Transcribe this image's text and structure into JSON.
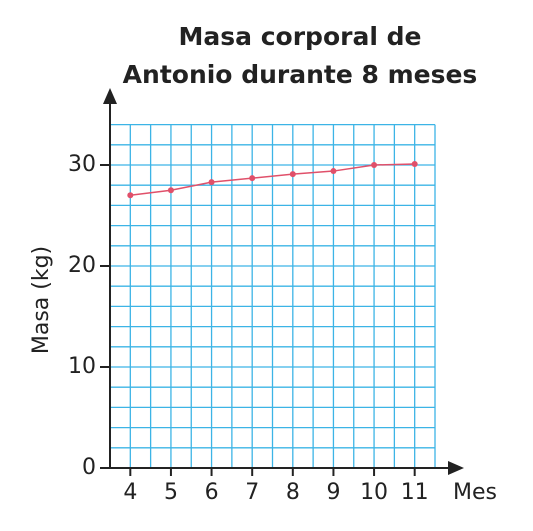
{
  "chart_data": {
    "type": "line",
    "title": [
      "Masa corporal de",
      "Antonio durante 8 meses"
    ],
    "x_label": "Mes",
    "y_label": "Masa (kg)",
    "x": [
      4,
      5,
      6,
      7,
      8,
      9,
      10,
      11
    ],
    "series": [
      {
        "name": "Masa",
        "color": "#e0506a",
        "values": [
          27,
          27.5,
          28.3,
          28.7,
          29.1,
          29.4,
          30,
          30.1
        ]
      }
    ],
    "xlim": [
      3.5,
      11.5
    ],
    "ylim": [
      0,
      34
    ],
    "xticks": [
      4,
      5,
      6,
      7,
      8,
      9,
      10,
      11
    ],
    "yticks": [
      0,
      10,
      20,
      30
    ],
    "grid": true,
    "grid_color": "#3cb4e6",
    "xgrid": [
      3.5,
      4,
      4.5,
      5,
      5.5,
      6,
      6.5,
      7,
      7.5,
      8,
      8.5,
      9,
      9.5,
      10,
      10.5,
      11,
      11.5
    ],
    "ygrid": [
      0,
      2,
      4,
      6,
      8,
      10,
      12,
      14,
      16,
      18,
      20,
      22,
      24,
      26,
      28,
      30,
      32,
      34
    ]
  }
}
